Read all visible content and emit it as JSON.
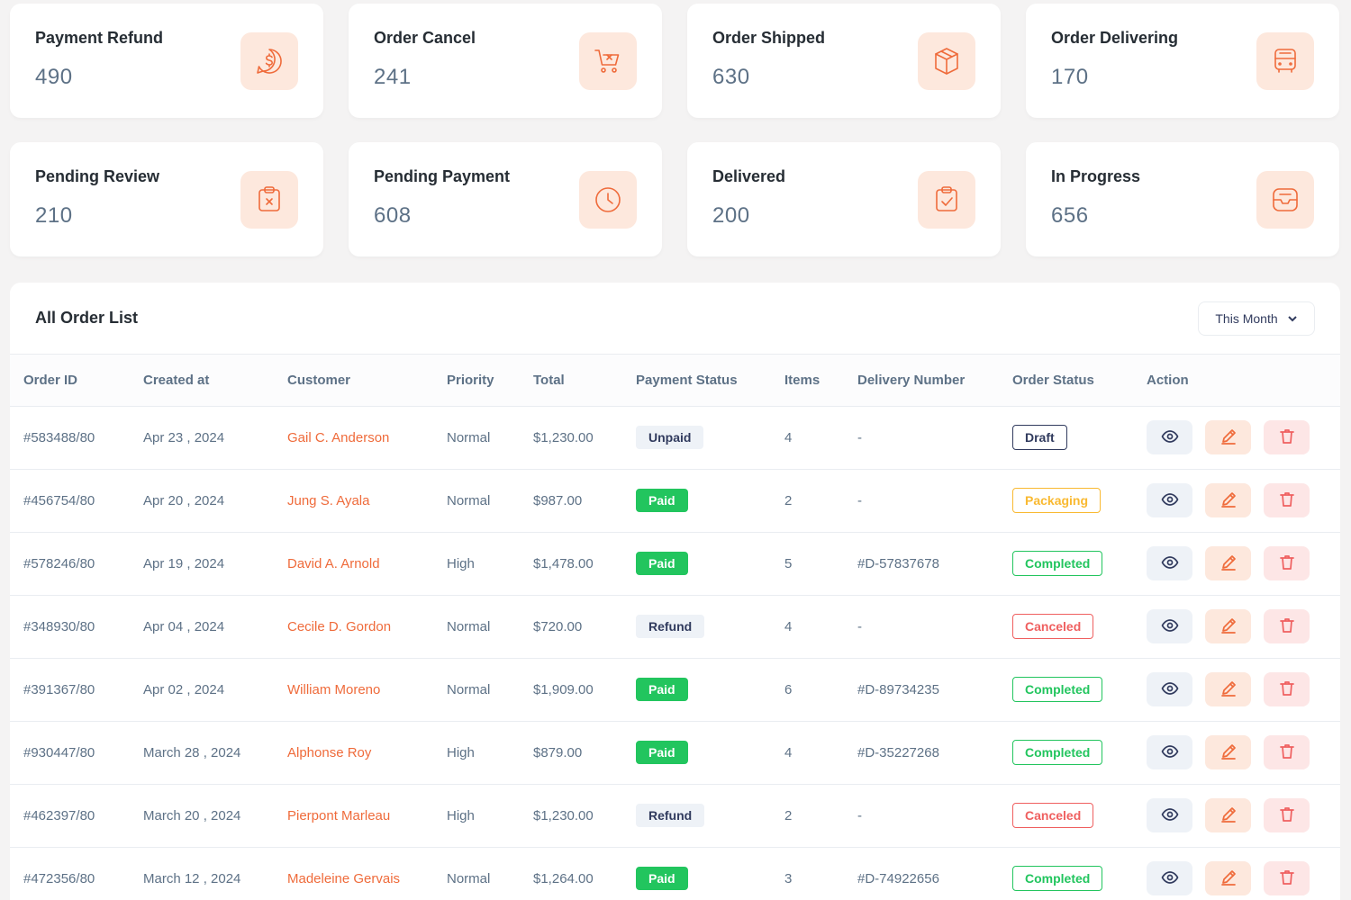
{
  "stats": [
    {
      "title": "Payment Refund",
      "value": "490",
      "icon": "dollar-chat-icon"
    },
    {
      "title": "Order Cancel",
      "value": "241",
      "icon": "cart-cancel-icon"
    },
    {
      "title": "Order Shipped",
      "value": "630",
      "icon": "box-icon"
    },
    {
      "title": "Order Delivering",
      "value": "170",
      "icon": "bus-icon"
    },
    {
      "title": "Pending Review",
      "value": "210",
      "icon": "clipboard-x-icon"
    },
    {
      "title": "Pending Payment",
      "value": "608",
      "icon": "clock-icon"
    },
    {
      "title": "Delivered",
      "value": "200",
      "icon": "clipboard-check-icon"
    },
    {
      "title": "In Progress",
      "value": "656",
      "icon": "inbox-icon"
    }
  ],
  "orders": {
    "title": "All Order List",
    "filter_label": "This Month",
    "columns": [
      "Order ID",
      "Created at",
      "Customer",
      "Priority",
      "Total",
      "Payment Status",
      "Items",
      "Delivery Number",
      "Order Status",
      "Action"
    ],
    "rows": [
      {
        "id": "#583488/80",
        "created": "Apr 23 , 2024",
        "customer": "Gail C. Anderson",
        "priority": "Normal",
        "total": "$1,230.00",
        "payment": "Unpaid",
        "items": "4",
        "delivery": "-",
        "status": "Draft"
      },
      {
        "id": "#456754/80",
        "created": "Apr 20 , 2024",
        "customer": "Jung S. Ayala",
        "priority": "Normal",
        "total": "$987.00",
        "payment": "Paid",
        "items": "2",
        "delivery": "-",
        "status": "Packaging"
      },
      {
        "id": "#578246/80",
        "created": "Apr 19 , 2024",
        "customer": "David A. Arnold",
        "priority": "High",
        "total": "$1,478.00",
        "payment": "Paid",
        "items": "5",
        "delivery": "#D-57837678",
        "status": "Completed"
      },
      {
        "id": "#348930/80",
        "created": "Apr 04 , 2024",
        "customer": "Cecile D. Gordon",
        "priority": "Normal",
        "total": "$720.00",
        "payment": "Refund",
        "items": "4",
        "delivery": "-",
        "status": "Canceled"
      },
      {
        "id": "#391367/80",
        "created": "Apr 02 , 2024",
        "customer": "William Moreno",
        "priority": "Normal",
        "total": "$1,909.00",
        "payment": "Paid",
        "items": "6",
        "delivery": "#D-89734235",
        "status": "Completed"
      },
      {
        "id": "#930447/80",
        "created": "March 28 , 2024",
        "customer": "Alphonse Roy",
        "priority": "High",
        "total": "$879.00",
        "payment": "Paid",
        "items": "4",
        "delivery": "#D-35227268",
        "status": "Completed"
      },
      {
        "id": "#462397/80",
        "created": "March 20 , 2024",
        "customer": "Pierpont Marleau",
        "priority": "High",
        "total": "$1,230.00",
        "payment": "Refund",
        "items": "2",
        "delivery": "-",
        "status": "Canceled"
      },
      {
        "id": "#472356/80",
        "created": "March 12 , 2024",
        "customer": "Madeleine Gervais",
        "priority": "Normal",
        "total": "$1,264.00",
        "payment": "Paid",
        "items": "3",
        "delivery": "#D-74922656",
        "status": "Completed"
      }
    ]
  },
  "colors": {
    "accent": "#ef6b3b",
    "paid": "#22c55e",
    "packaging": "#f9b931",
    "canceled": "#ef5f5f",
    "draft": "#313b5e"
  }
}
